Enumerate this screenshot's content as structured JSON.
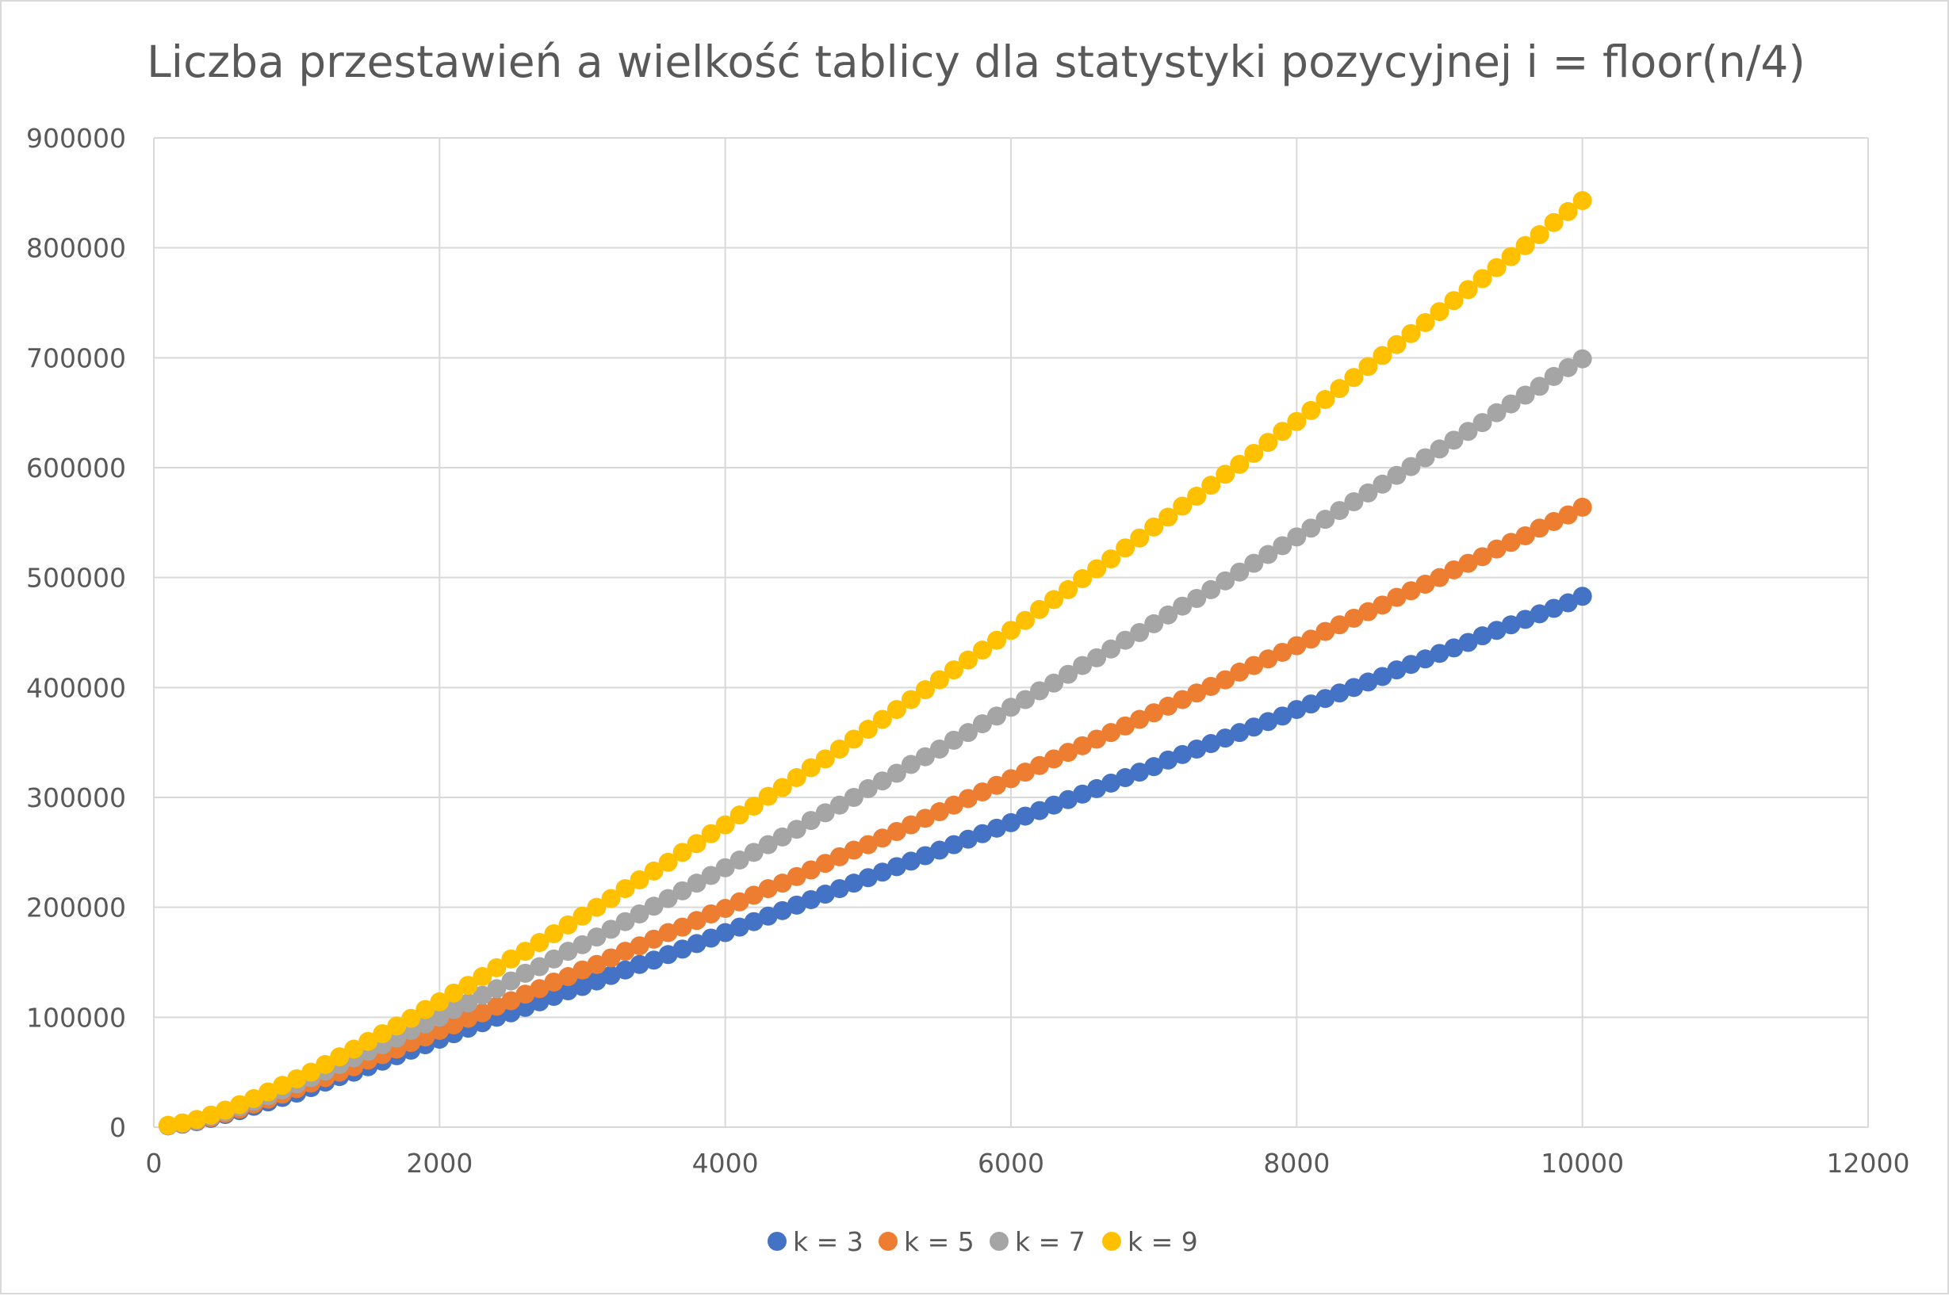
{
  "chart_data": {
    "type": "scatter",
    "title": "Liczba przestawień a wielkość tablicy dla statystyki pozycyjnej i = floor(n/4)",
    "xlabel": "",
    "ylabel": "",
    "xlim": [
      0,
      12000
    ],
    "ylim": [
      0,
      900000
    ],
    "x_ticks": [
      0,
      2000,
      4000,
      6000,
      8000,
      10000,
      12000
    ],
    "y_ticks": [
      0,
      100000,
      200000,
      300000,
      400000,
      500000,
      600000,
      700000,
      800000,
      900000
    ],
    "x_tick_labels": [
      "0",
      "2000",
      "4000",
      "6000",
      "8000",
      "10000",
      "12000"
    ],
    "y_tick_labels": [
      "0",
      "100000",
      "200000",
      "300000",
      "400000",
      "500000",
      "600000",
      "700000",
      "800000",
      "900000"
    ],
    "grid": "both",
    "legend_position": "bottom",
    "x": [
      100,
      200,
      300,
      400,
      500,
      600,
      700,
      800,
      900,
      1000,
      1100,
      1200,
      1300,
      1400,
      1500,
      1600,
      1700,
      1800,
      1900,
      2000,
      2100,
      2200,
      2300,
      2400,
      2500,
      2600,
      2700,
      2800,
      2900,
      3000,
      3100,
      3200,
      3300,
      3400,
      3500,
      3600,
      3700,
      3800,
      3900,
      4000,
      4100,
      4200,
      4300,
      4400,
      4500,
      4600,
      4700,
      4800,
      4900,
      5000,
      5100,
      5200,
      5300,
      5400,
      5500,
      5600,
      5700,
      5800,
      5900,
      6000,
      6100,
      6200,
      6300,
      6400,
      6500,
      6600,
      6700,
      6800,
      6900,
      7000,
      7100,
      7200,
      7300,
      7400,
      7500,
      7600,
      7700,
      7800,
      7900,
      8000,
      8100,
      8200,
      8300,
      8400,
      8500,
      8600,
      8700,
      8800,
      8900,
      9000,
      9100,
      9200,
      9300,
      9400,
      9500,
      9600,
      9700,
      9800,
      9900,
      10000
    ],
    "series": [
      {
        "name": "k = 3",
        "color": "#4472C4",
        "values": [
          1200,
          2700,
          5000,
          8000,
          11500,
          15000,
          19000,
          23000,
          27000,
          31000,
          36000,
          41000,
          46000,
          50000,
          55000,
          60000,
          65000,
          70000,
          75000,
          80000,
          85000,
          90000,
          95000,
          100000,
          104000,
          109000,
          114000,
          119000,
          124000,
          128000,
          133000,
          138000,
          143000,
          148000,
          152000,
          157000,
          162000,
          167000,
          172000,
          177000,
          182000,
          187000,
          192000,
          197000,
          202000,
          207000,
          212000,
          217000,
          222000,
          227000,
          232000,
          237000,
          242000,
          247000,
          252000,
          257000,
          262000,
          267000,
          272000,
          277000,
          283000,
          288000,
          293000,
          298000,
          303000,
          308000,
          313000,
          318000,
          323000,
          328000,
          334000,
          339000,
          344000,
          349000,
          354000,
          359000,
          364000,
          369000,
          374000,
          380000,
          385000,
          390000,
          395000,
          400000,
          405000,
          410000,
          416000,
          421000,
          426000,
          431000,
          436000,
          441000,
          447000,
          452000,
          457000,
          462000,
          467000,
          472000,
          477000,
          483000
        ]
      },
      {
        "name": "k = 5",
        "color": "#ED7D31",
        "values": [
          1300,
          3000,
          5500,
          8700,
          12500,
          16500,
          21000,
          25500,
          30000,
          35000,
          40000,
          45000,
          50000,
          55000,
          61000,
          66000,
          71000,
          77000,
          82000,
          88000,
          93000,
          99000,
          104000,
          110000,
          115000,
          121000,
          126000,
          132000,
          137000,
          143000,
          148000,
          154000,
          160000,
          165000,
          171000,
          177000,
          182000,
          188000,
          194000,
          199000,
          205000,
          211000,
          217000,
          222000,
          228000,
          234000,
          240000,
          246000,
          252000,
          257000,
          263000,
          269000,
          275000,
          281000,
          287000,
          293000,
          299000,
          305000,
          311000,
          317000,
          323000,
          329000,
          335000,
          341000,
          347000,
          353000,
          359000,
          365000,
          371000,
          377000,
          383000,
          389000,
          395000,
          401000,
          407000,
          414000,
          420000,
          426000,
          432000,
          438000,
          444000,
          451000,
          457000,
          463000,
          469000,
          475000,
          482000,
          488000,
          494000,
          500000,
          507000,
          513000,
          519000,
          526000,
          532000,
          538000,
          545000,
          551000,
          557000,
          564000
        ]
      },
      {
        "name": "k = 7",
        "color": "#A5A5A5",
        "values": [
          1500,
          3400,
          6200,
          9800,
          14000,
          18500,
          23500,
          28500,
          34000,
          39500,
          45000,
          51000,
          57000,
          63000,
          69000,
          75000,
          81000,
          88000,
          94000,
          100000,
          107000,
          113000,
          120000,
          126000,
          133000,
          140000,
          146000,
          153000,
          160000,
          166000,
          173000,
          180000,
          187000,
          194000,
          201000,
          208000,
          215000,
          222000,
          229000,
          236000,
          243000,
          250000,
          257000,
          264000,
          271000,
          279000,
          286000,
          293000,
          300000,
          308000,
          315000,
          322000,
          330000,
          337000,
          344000,
          352000,
          359000,
          367000,
          374000,
          382000,
          389000,
          397000,
          404000,
          412000,
          420000,
          427000,
          435000,
          443000,
          450000,
          458000,
          466000,
          474000,
          481000,
          489000,
          497000,
          505000,
          513000,
          521000,
          529000,
          537000,
          545000,
          553000,
          561000,
          569000,
          577000,
          585000,
          593000,
          601000,
          609000,
          617000,
          625000,
          633000,
          641000,
          650000,
          658000,
          666000,
          674000,
          683000,
          691000,
          699000
        ]
      },
      {
        "name": "k = 9",
        "color": "#FFC000",
        "values": [
          1700,
          3900,
          7000,
          11000,
          15500,
          20500,
          26000,
          32000,
          38000,
          44000,
          50000,
          57000,
          64000,
          71000,
          78000,
          85000,
          92000,
          99000,
          107000,
          114000,
          122000,
          129000,
          137000,
          145000,
          153000,
          160000,
          168000,
          176000,
          184000,
          192000,
          200000,
          208000,
          217000,
          225000,
          233000,
          241000,
          250000,
          258000,
          267000,
          275000,
          284000,
          292000,
          301000,
          309000,
          318000,
          327000,
          335000,
          344000,
          353000,
          362000,
          371000,
          380000,
          389000,
          398000,
          407000,
          416000,
          425000,
          434000,
          443000,
          452000,
          461000,
          471000,
          480000,
          489000,
          499000,
          508000,
          517000,
          527000,
          536000,
          546000,
          555000,
          565000,
          574000,
          584000,
          594000,
          603000,
          613000,
          623000,
          633000,
          642000,
          652000,
          662000,
          672000,
          682000,
          692000,
          702000,
          712000,
          722000,
          732000,
          742000,
          752000,
          762000,
          772000,
          782000,
          792000,
          802000,
          812000,
          823000,
          833000,
          843000
        ]
      }
    ]
  }
}
